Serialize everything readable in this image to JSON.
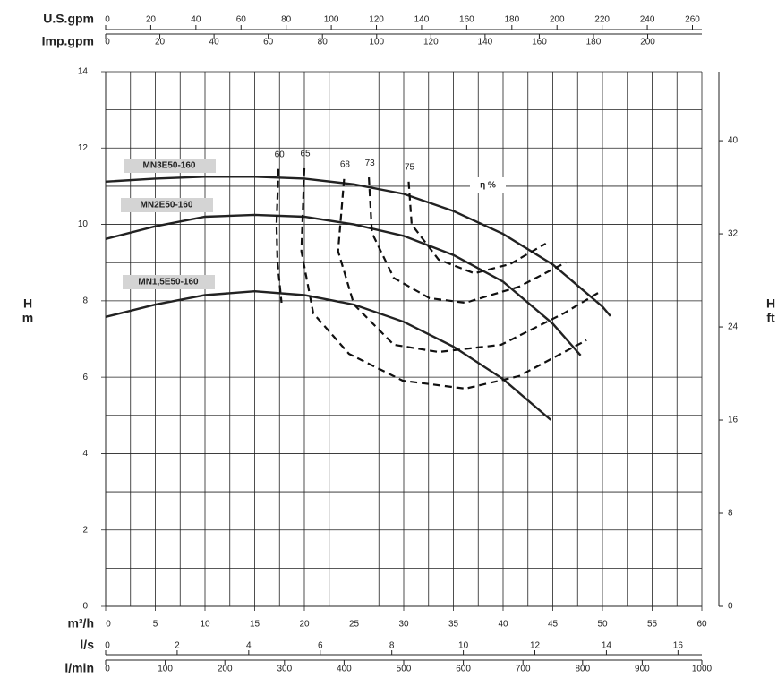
{
  "chart_data": {
    "type": "line",
    "x_label": "m³/h",
    "xlim": [
      0,
      60
    ],
    "xticks": [
      0,
      5,
      10,
      15,
      20,
      25,
      30,
      35,
      40,
      45,
      50,
      55,
      60
    ],
    "xminor": [
      2.5,
      7.5,
      12.5,
      17.5,
      22.5,
      27.5,
      32.5,
      37.5,
      42.5,
      47.5,
      52.5,
      57.5
    ],
    "y_label": [
      "H",
      "m"
    ],
    "ylim": [
      0,
      14
    ],
    "yticks": [
      0,
      2,
      4,
      6,
      8,
      10,
      12,
      14
    ],
    "yminor": [
      1,
      3,
      5,
      7,
      9,
      11,
      13
    ],
    "y2_label": [
      "H",
      "ft"
    ],
    "y2lim": [
      0,
      45.93
    ],
    "y2ticks": [
      0,
      8,
      16,
      24,
      32,
      40
    ],
    "top_axes": [
      {
        "label": "U.S.gpm",
        "lim": [
          0,
          264.17
        ],
        "ticks": [
          0,
          20,
          40,
          60,
          80,
          100,
          120,
          140,
          160,
          180,
          200,
          220,
          240,
          260
        ]
      },
      {
        "label": "Imp.gpm",
        "lim": [
          0,
          219.97
        ],
        "ticks": [
          0,
          20,
          40,
          60,
          80,
          100,
          120,
          140,
          160,
          180,
          200
        ]
      }
    ],
    "bottom_axes": [
      {
        "label": "l/s",
        "lim": [
          0,
          16.667
        ],
        "ticks": [
          0,
          2,
          4,
          6,
          8,
          10,
          12,
          14,
          16
        ]
      },
      {
        "label": "l/min",
        "lim": [
          0,
          1000
        ],
        "ticks": [
          0,
          100,
          200,
          300,
          400,
          500,
          600,
          700,
          800,
          900,
          1000
        ]
      }
    ],
    "series": [
      {
        "name": "MN3E50-160",
        "color": "#222222",
        "x": [
          0,
          5,
          10,
          15,
          20,
          25,
          30,
          35,
          40,
          45,
          50,
          50.8
        ],
        "values": [
          11.12,
          11.2,
          11.25,
          11.25,
          11.2,
          11.05,
          10.8,
          10.35,
          9.75,
          8.95,
          7.85,
          7.6
        ]
      },
      {
        "name": "MN2E50-160",
        "color": "#222222",
        "x": [
          0,
          5,
          10,
          15,
          20,
          25,
          30,
          35,
          40,
          45,
          47.8
        ],
        "values": [
          9.62,
          9.95,
          10.2,
          10.25,
          10.2,
          10.0,
          9.7,
          9.2,
          8.5,
          7.4,
          6.57
        ]
      },
      {
        "name": "MN1,5E50-160",
        "color": "#222222",
        "x": [
          0,
          5,
          10,
          15,
          20,
          25,
          30,
          35,
          40,
          44.8
        ],
        "values": [
          7.58,
          7.9,
          8.15,
          8.25,
          8.15,
          7.9,
          7.45,
          6.8,
          5.95,
          4.88
        ]
      }
    ],
    "efficiency_label": "η %",
    "efficiency": [
      {
        "name": "60",
        "x": [
          17.4,
          17.2,
          17.3,
          17.7
        ],
        "values": [
          11.45,
          10,
          9,
          7.95
        ]
      },
      {
        "name": "65",
        "x": [
          20,
          19.7,
          20.9,
          24.5,
          29.9,
          36.2,
          41.6,
          48.4
        ],
        "values": [
          11.47,
          9.3,
          7.67,
          6.61,
          5.91,
          5.7,
          6.03,
          6.97
        ]
      },
      {
        "name": "68",
        "x": [
          24,
          23.4,
          25,
          29,
          33.5,
          39.8,
          46.1,
          49.9
        ],
        "values": [
          11.19,
          9.3,
          7.9,
          6.85,
          6.66,
          6.85,
          7.67,
          8.26
        ]
      },
      {
        "name": "73",
        "x": [
          26.5,
          26.8,
          29,
          32.6,
          36.2,
          41.6,
          46.3
        ],
        "values": [
          11.23,
          9.78,
          8.6,
          8.07,
          7.95,
          8.37,
          9.0
        ]
      },
      {
        "name": "75",
        "x": [
          30.5,
          30.8,
          33.5,
          37.1,
          40.7,
          44.3
        ],
        "values": [
          11.12,
          10.0,
          9.08,
          8.72,
          8.96,
          9.5
        ]
      }
    ]
  }
}
